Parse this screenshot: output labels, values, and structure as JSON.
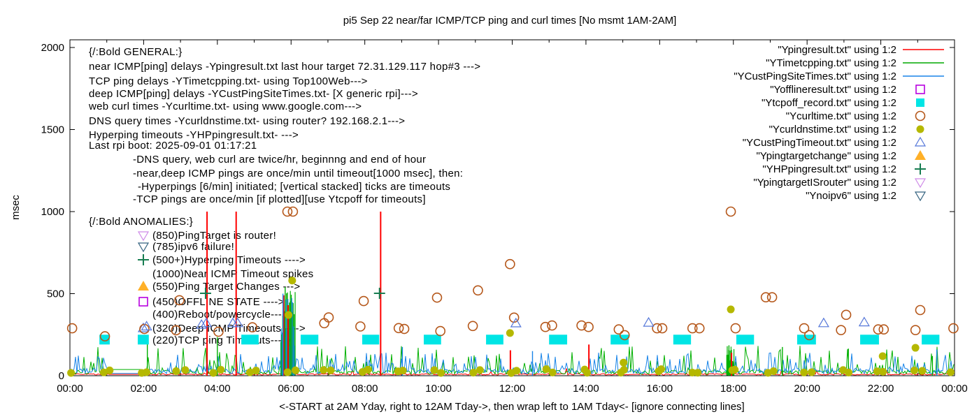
{
  "chart_data": {
    "type": "line",
    "title": "pi5 Sep 22  near/far ICMP/TCP ping and curl times [No msmt 1AM-2AM]",
    "xlabel": "<-START at 2AM Yday, right to 12AM Tday->, then wrap left to 1AM Tday<- [ignore connecting lines]",
    "ylabel": "msec",
    "x_ticks": [
      "00:00",
      "02:00",
      "04:00",
      "06:00",
      "08:00",
      "10:00",
      "12:00",
      "14:00",
      "16:00",
      "18:00",
      "20:00",
      "22:00",
      "00:00"
    ],
    "y_ticks": [
      "0",
      "500",
      "1000",
      "1500",
      "2000"
    ],
    "xlim_hours": [
      0,
      24
    ],
    "ylim": [
      0,
      2045
    ],
    "grid": false,
    "legend_position": "top-right-inside",
    "legend": [
      {
        "label": "\"Ypingresult.txt\" using 1:2",
        "sample": "line",
        "color": "#ff0000"
      },
      {
        "label": "\"YTimetcpping.txt\" using 1:2",
        "sample": "line",
        "color": "#00a800"
      },
      {
        "label": "\"YCustPingSiteTimes.txt\" using 1:2",
        "sample": "line",
        "color": "#1884e8"
      },
      {
        "label": "\"Yofflineresult.txt\" using 1:2",
        "sample": "square-open",
        "color": "#b800e0"
      },
      {
        "label": "\"Ytcpoff_record.txt\" using 1:2",
        "sample": "square",
        "color": "#00e5e5"
      },
      {
        "label": "\"Ycurltime.txt\" using 1:2",
        "sample": "circle-open",
        "color": "#b5571a"
      },
      {
        "label": "\"Ycurldnstime.txt\" using 1:2",
        "sample": "circle",
        "color": "#b5b800"
      },
      {
        "label": "\"YCustPingTimeout.txt\" using 1:2",
        "sample": "triangle-open",
        "color": "#5577d9"
      },
      {
        "label": "\"Ypingtargetchange\" using 1:2",
        "sample": "triangle",
        "color": "#ffb028"
      },
      {
        "label": "\"YHPpingresult.txt\" using 1:2",
        "sample": "plus",
        "color": "#177d51"
      },
      {
        "label": "\"YpingtargetISrouter\" using 1:2",
        "sample": "tridown-open",
        "color": "#cf8be8"
      },
      {
        "label": "\"Ynoipv6\" using 1:2",
        "sample": "tridown-open",
        "color": "#33627f"
      }
    ],
    "annotations": {
      "general": [
        "{/:Bold GENERAL:}",
        "near ICMP[ping] delays -Ypingresult.txt last hour target 72.31.129.117 hop#3 --->",
        "TCP ping delays -YTimetcpping.txt- using Top100Web--->",
        "deep ICMP[ping] delays -YCustPingSiteTimes.txt- [X generic rpi]--->",
        "web curl times -Ycurltime.txt- using www.google.com--->",
        "DNS query times -Ycurldnstime.txt- using router? 192.168.2.1--->",
        "Hyperping timeouts -YHPpingresult.txt- --->",
        "Last rpi boot: 2025-09-01 01:17:21",
        "-DNS query, web curl are twice/hr, beginnng and end of hour",
        "-near,deep ICMP pings are once/min until timeout[1000 msec], then:",
        "-Hyperpings [6/min] initiated; [vertical stacked] ticks are timeouts",
        "-TCP pings are once/min [if plotted][use Ytcpoff for timeouts]"
      ],
      "anomalies_title": "{/:Bold ANOMALIES:}",
      "anomalies": [
        {
          "marker": "tridown-open",
          "color": "#cf8be8",
          "text": "(850)PingTarget is router!"
        },
        {
          "marker": "tridown-open",
          "color": "#33627f",
          "text": "(785)ipv6 failure!"
        },
        {
          "marker": "plus",
          "color": "#177d51",
          "text": "(500+)Hyperping Timeouts ---->"
        },
        {
          "marker": "none",
          "color": "",
          "text": "(1000)Near ICMP Timeout spikes"
        },
        {
          "marker": "triangle",
          "color": "#ffb028",
          "text": "(550)Ping Target Changes --->"
        },
        {
          "marker": "square-open",
          "color": "#b800e0",
          "text": "(450)OFFLINE STATE ---->"
        },
        {
          "marker": "none",
          "color": "",
          "text": "(400)Reboot/powercycle---->"
        },
        {
          "marker": "triangle-open",
          "color": "#5577d9",
          "text": "(320)Deep ICMP Timeouts ---->"
        },
        {
          "marker": "square",
          "color": "#00e5e5",
          "text": "(220)TCP ping Timeouts---->"
        }
      ]
    },
    "series": {
      "noise": {
        "gap_hours": [
          1.05,
          1.95
        ],
        "gap_levels": {
          "red": 8,
          "green": 38,
          "blue": 14
        },
        "red": {
          "color": "#ff0000",
          "base": 4,
          "spread": 9,
          "spike_p": 0.02,
          "spike_max": 35
        },
        "green": {
          "color": "#00b000",
          "base": 8,
          "spread": 26,
          "spike_p": 0.17,
          "spike_max": 150
        },
        "blue": {
          "color": "#1884e8",
          "base": 12,
          "spread": 34,
          "spike_p": 0.2,
          "spike_max": 95
        }
      },
      "near_icmp_timeout_spikes": {
        "color": "#ff0000",
        "points": [
          [
            3.72,
            1000
          ],
          [
            4.51,
            1000
          ],
          [
            5.8,
            490
          ],
          [
            5.92,
            430
          ],
          [
            8.43,
            1000
          ],
          [
            11.95,
            155
          ],
          [
            14.08,
            190
          ],
          [
            17.95,
            140
          ]
        ]
      },
      "tcp_ping_spikes": {
        "color": "#00b000",
        "points": [
          [
            2.1,
            235
          ],
          [
            4.0,
            235
          ],
          [
            5.84,
            540
          ],
          [
            5.98,
            455
          ],
          [
            17.88,
            185
          ],
          [
            19.33,
            175
          ],
          [
            21.12,
            165
          ],
          [
            23.4,
            120
          ]
        ]
      },
      "deep_icmp_spikes": {
        "color": "#1884e8",
        "points": [
          [
            5.78,
            500
          ],
          [
            5.87,
            465
          ],
          [
            6.07,
            300
          ],
          [
            9.02,
            175
          ],
          [
            12.55,
            150
          ],
          [
            23.52,
            160
          ]
        ]
      },
      "spike_clusters": [
        {
          "from": 5.72,
          "to": 6.12,
          "min": 150,
          "max": 520,
          "colors": [
            "#00b000",
            "#1884e8"
          ]
        },
        {
          "from": 17.82,
          "to": 18.02,
          "min": 40,
          "max": 180,
          "colors": [
            "#00b000"
          ]
        }
      ],
      "curl_times": {
        "color": "#b5571a",
        "points": [
          [
            0.06,
            289
          ],
          [
            0.95,
            240
          ],
          [
            2.02,
            285
          ],
          [
            2.88,
            277
          ],
          [
            2.97,
            460
          ],
          [
            4.03,
            268
          ],
          [
            4.95,
            295
          ],
          [
            5.9,
            1000
          ],
          [
            6.05,
            1000
          ],
          [
            6.9,
            320
          ],
          [
            7.02,
            355
          ],
          [
            7.88,
            300
          ],
          [
            7.97,
            455
          ],
          [
            8.92,
            290
          ],
          [
            9.07,
            285
          ],
          [
            9.96,
            476
          ],
          [
            10.05,
            272
          ],
          [
            10.93,
            303
          ],
          [
            11.07,
            520
          ],
          [
            11.94,
            680
          ],
          [
            12.05,
            354
          ],
          [
            12.9,
            297
          ],
          [
            13.08,
            306
          ],
          [
            13.88,
            306
          ],
          [
            14.07,
            297
          ],
          [
            14.89,
            282
          ],
          [
            15.05,
            247
          ],
          [
            15.93,
            289
          ],
          [
            16.07,
            289
          ],
          [
            16.89,
            289
          ],
          [
            17.08,
            289
          ],
          [
            17.93,
            1000
          ],
          [
            18.06,
            289
          ],
          [
            18.88,
            478
          ],
          [
            19.05,
            478
          ],
          [
            19.92,
            289
          ],
          [
            20.06,
            247
          ],
          [
            20.92,
            278
          ],
          [
            21.06,
            371
          ],
          [
            21.93,
            282
          ],
          [
            22.08,
            282
          ],
          [
            22.94,
            278
          ],
          [
            23.07,
            400
          ],
          [
            23.97,
            289
          ]
        ]
      },
      "dns_times": {
        "color": "#b5b800",
        "hourly_pairs": true,
        "low_range": [
          14,
          40
        ],
        "special_points": [
          [
            5.93,
            370
          ],
          [
            6.03,
            580
          ],
          [
            11.94,
            260
          ],
          [
            15.02,
            80
          ],
          [
            17.93,
            404
          ],
          [
            22.05,
            119
          ],
          [
            22.94,
            170
          ]
        ]
      },
      "tcp_off_bars": {
        "color": "#00e5e5",
        "value": 220,
        "intervals": [
          [
            0.8,
            1.08
          ],
          [
            1.84,
            2.14
          ],
          [
            4.65,
            5.12
          ],
          [
            6.26,
            6.74
          ],
          [
            7.93,
            8.39
          ],
          [
            9.6,
            10.07
          ],
          [
            11.29,
            11.76
          ],
          [
            13.0,
            13.49
          ],
          [
            14.67,
            15.16
          ],
          [
            16.37,
            16.85
          ],
          [
            18.08,
            18.56
          ],
          [
            19.73,
            20.24
          ],
          [
            21.44,
            21.95
          ],
          [
            23.11,
            23.59
          ]
        ]
      },
      "deep_ping_timeouts": {
        "color": "#5577d9",
        "points": [
          [
            2.08,
            300
          ],
          [
            3.57,
            310
          ],
          [
            3.7,
            320
          ],
          [
            4.42,
            320
          ],
          [
            4.55,
            320
          ],
          [
            12.1,
            319
          ],
          [
            15.7,
            323
          ],
          [
            20.45,
            320
          ],
          [
            21.55,
            325
          ]
        ]
      },
      "hyperping_timeouts": {
        "color": "#177d51",
        "points": [
          [
            3.68,
            502
          ],
          [
            8.4,
            502
          ]
        ]
      },
      "ping_target_change": {
        "color": "#ffb028",
        "points": []
      },
      "offline_state": {
        "color": "#b800e0",
        "points": []
      },
      "target_is_router": {
        "color": "#cf8be8",
        "points": []
      },
      "no_ipv6": {
        "color": "#33627f",
        "points": []
      }
    }
  }
}
